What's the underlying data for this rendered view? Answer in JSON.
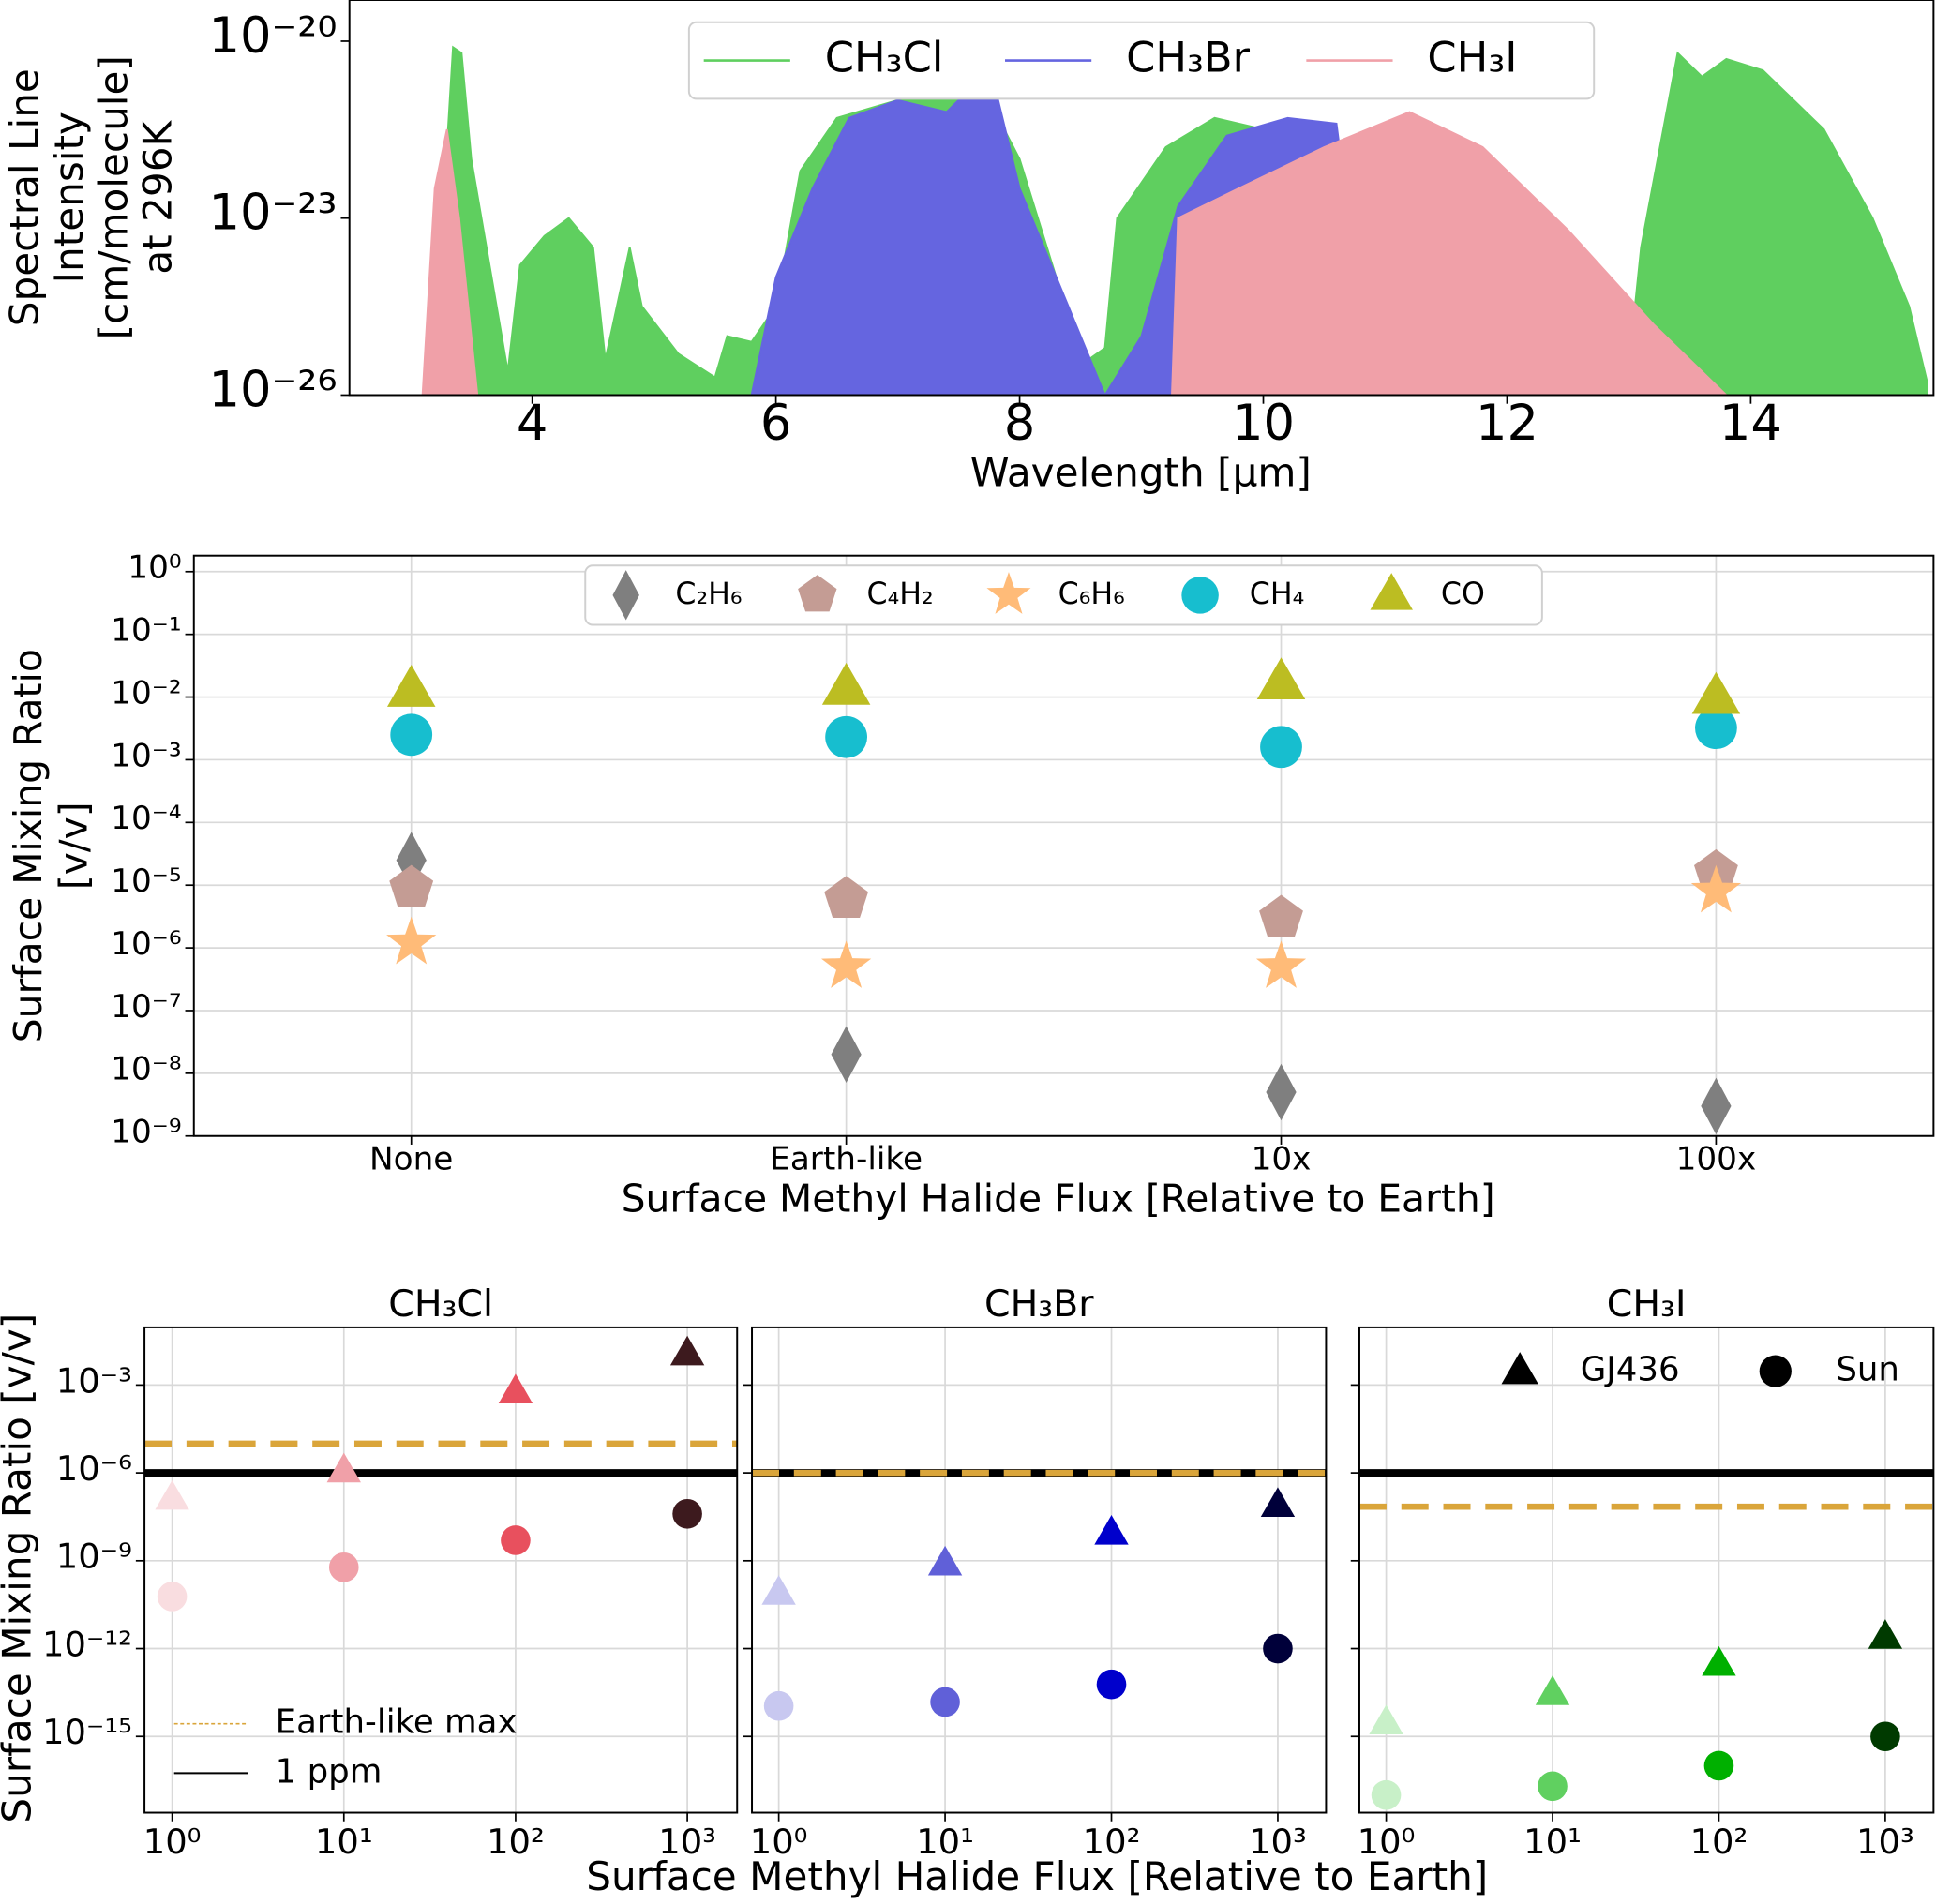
{
  "chart_data": [
    {
      "type": "area",
      "log_y": true,
      "xlabel": "Wavelength [μm]",
      "ylabel": [
        "Spectral Line",
        "Intensity",
        "[cm/molecule]",
        "at 296K"
      ],
      "xlim": [
        2.5,
        15.5
      ],
      "ylim": [
        1e-26,
        5e-20
      ],
      "xticks": [
        4,
        6,
        8,
        10,
        12,
        14
      ],
      "yticks": [
        {
          "value": 1e-26,
          "label": "10⁻²⁶"
        },
        {
          "value": 1e-23,
          "label": "10⁻²³"
        },
        {
          "value": 1e-20,
          "label": "10⁻²⁰"
        }
      ],
      "grid": false,
      "legend": "upper center",
      "series": [
        {
          "name": "CH₃Cl",
          "color": "#5fcf5f",
          "x": [
            3.25,
            3.3,
            3.35,
            3.42,
            3.5,
            3.8,
            3.9,
            4.1,
            4.3,
            4.5,
            4.6,
            4.8,
            4.9,
            5.2,
            5.5,
            5.6,
            5.8,
            6.0,
            6.2,
            6.5,
            7.0,
            7.5,
            7.8,
            8.0,
            8.3,
            8.5,
            8.7,
            8.8,
            9.2,
            9.6,
            10.0,
            10.2,
            10.4,
            10.6,
            13.0,
            13.1,
            13.4,
            13.6,
            13.8,
            14.1,
            14.6,
            15.0,
            15.3,
            15.45
          ],
          "values": [
            1e-26,
            1.6e-22,
            7.9e-21,
            6.3e-21,
            1e-22,
            2.5e-26,
            1.6e-24,
            5e-24,
            1e-23,
            3.2e-24,
            4e-26,
            3.2e-24,
            3.2e-25,
            5e-26,
            2e-26,
            1e-25,
            8e-26,
            3.2e-25,
            6.3e-23,
            5e-22,
            1e-21,
            1.6e-21,
            6.3e-22,
            1e-22,
            1e-24,
            3.2e-26,
            6.3e-26,
            1e-23,
            1.6e-22,
            5e-22,
            3.2e-22,
            1e-22,
            1e-24,
            1e-26,
            3.2e-26,
            3.2e-24,
            6.3e-21,
            2.5e-21,
            5e-21,
            3.2e-21,
            3.2e-22,
            1e-23,
            3.2e-25,
            1.6e-26
          ]
        },
        {
          "name": "CH₃Br",
          "color": "#6565e0",
          "x": [
            5.8,
            6.0,
            6.3,
            6.6,
            7.0,
            7.4,
            7.6,
            7.8,
            8.0,
            8.4,
            8.7,
            9.0,
            9.3,
            9.7,
            10.2,
            10.6,
            10.7,
            11.2,
            11.7,
            11.8
          ],
          "values": [
            1e-26,
            1e-24,
            3.2e-23,
            5e-22,
            1e-21,
            6.3e-22,
            1.6e-21,
            1.6e-21,
            3.2e-23,
            3.2e-25,
            1e-26,
            1e-25,
            1.6e-23,
            2.5e-22,
            5e-22,
            4e-22,
            1e-23,
            3.2e-25,
            3.2e-26,
            1e-26
          ]
        },
        {
          "name": "CH₃I",
          "color": "#f0a0a8",
          "x": [
            3.1,
            3.2,
            3.3,
            3.4,
            3.55,
            6.0,
            9.25,
            9.3,
            9.8,
            10.5,
            11.2,
            11.8,
            12.5,
            13.2,
            13.8
          ],
          "values": [
            1e-26,
            3.2e-23,
            3.2e-22,
            1e-23,
            1e-26,
            null,
            1e-26,
            1e-23,
            3.2e-23,
            1.6e-22,
            6.3e-22,
            1.6e-22,
            6.3e-24,
            1.6e-25,
            1e-26
          ]
        }
      ]
    },
    {
      "type": "scatter",
      "log_y": true,
      "xlabel": "Surface Methyl Halide Flux [Relative to Earth]",
      "ylabel": [
        "Surface Mixing Ratio",
        "[v/v]"
      ],
      "categories": [
        "None",
        "Earth-like",
        "10x",
        "100x"
      ],
      "ylim": [
        1e-09,
        1.8
      ],
      "yticks": [
        {
          "value": 1,
          "label": "10⁰"
        },
        {
          "value": 0.1,
          "label": "10⁻¹"
        },
        {
          "value": 0.01,
          "label": "10⁻²"
        },
        {
          "value": 0.001,
          "label": "10⁻³"
        },
        {
          "value": 0.0001,
          "label": "10⁻⁴"
        },
        {
          "value": 1e-05,
          "label": "10⁻⁵"
        },
        {
          "value": 1e-06,
          "label": "10⁻⁶"
        },
        {
          "value": 1e-07,
          "label": "10⁻⁷"
        },
        {
          "value": 1e-08,
          "label": "10⁻⁸"
        },
        {
          "value": 1e-09,
          "label": "10⁻⁹"
        }
      ],
      "grid": true,
      "legend": "upper center",
      "series": [
        {
          "name": "C₂H₆",
          "color": "#7f7f7f",
          "marker": "diamond",
          "values": [
            2.5e-05,
            2e-08,
            5e-09,
            3e-09
          ]
        },
        {
          "name": "C₄H₂",
          "color": "#c49c94",
          "marker": "pentagon",
          "values": [
            9e-06,
            6e-06,
            3e-06,
            1.6e-05
          ]
        },
        {
          "name": "C₆H₆",
          "color": "#ffbb78",
          "marker": "star",
          "values": [
            1.2e-06,
            5e-07,
            5e-07,
            8e-06
          ]
        },
        {
          "name": "CH₄",
          "color": "#17becf",
          "marker": "circle",
          "values": [
            0.0025,
            0.0023,
            0.0016,
            0.0032
          ]
        },
        {
          "name": "CO",
          "color": "#bcbd22",
          "marker": "triangle",
          "values": [
            0.013,
            0.014,
            0.017,
            0.01
          ]
        }
      ]
    },
    {
      "type": "scatter",
      "log_x": true,
      "log_y": true,
      "title": "CH₃Cl",
      "xlabel": "Surface Methyl Halide Flux [Relative to Earth]",
      "ylabel": "Surface Mixing Ratio [v/v]",
      "x": [
        1,
        10,
        100,
        1000
      ],
      "xlim": [
        0.69,
        1950
      ],
      "ylim": [
        2.5e-18,
        0.093
      ],
      "xticks": [
        {
          "value": 1,
          "label": "10⁰"
        },
        {
          "value": 10,
          "label": "10¹"
        },
        {
          "value": 100,
          "label": "10²"
        },
        {
          "value": 1000,
          "label": "10³"
        }
      ],
      "yticks": [
        {
          "value": 0.001,
          "label": "10⁻³"
        },
        {
          "value": 1e-06,
          "label": "10⁻⁶"
        },
        {
          "value": 1e-09,
          "label": "10⁻⁹"
        },
        {
          "value": 1e-12,
          "label": "10⁻¹²"
        },
        {
          "value": 1e-15,
          "label": "10⁻¹⁵"
        }
      ],
      "grid": true,
      "legend": "lower left",
      "hlines": [
        {
          "name": "Earth-like max",
          "value": 1e-05,
          "color": "#daa53a",
          "dashed": true
        },
        {
          "name": "1 ppm",
          "value": 1e-06,
          "color": "#000000"
        }
      ],
      "series": [
        {
          "marker": "triangle",
          "colors": [
            "#f9dde0",
            "#f0a0a8",
            "#e8505e",
            "#3d1a1e"
          ],
          "values": [
            1.4e-07,
            1.2e-06,
            0.0006,
            0.012
          ]
        },
        {
          "marker": "circle",
          "colors": [
            "#f9dde0",
            "#f0a0a8",
            "#e8505e",
            "#3d1a1e"
          ],
          "values": [
            6e-11,
            6e-10,
            5e-09,
            4e-08
          ]
        }
      ]
    },
    {
      "type": "scatter",
      "log_x": true,
      "log_y": true,
      "title": "CH₃Br",
      "x": [
        1,
        10,
        100,
        1000
      ],
      "xlim": [
        0.69,
        1950
      ],
      "ylim": [
        2.5e-18,
        0.093
      ],
      "xticks": [
        {
          "value": 1,
          "label": "10⁰"
        },
        {
          "value": 10,
          "label": "10¹"
        },
        {
          "value": 100,
          "label": "10²"
        },
        {
          "value": 1000,
          "label": "10³"
        }
      ],
      "yticks": [
        0.001,
        1e-06,
        1e-09,
        1e-12,
        1e-15
      ],
      "ytick_labels": false,
      "grid": true,
      "hlines": [
        {
          "value": 1e-06,
          "color": "#daa53a",
          "dashed": true
        },
        {
          "value": 1e-06,
          "color": "#000000"
        }
      ],
      "series": [
        {
          "marker": "triangle",
          "colors": [
            "#c8c8f0",
            "#6060d8",
            "#0000cc",
            "#00003a"
          ],
          "values": [
            8e-11,
            8e-10,
            9e-09,
            8e-08
          ]
        },
        {
          "marker": "circle",
          "colors": [
            "#c8c8f0",
            "#6060d8",
            "#0000cc",
            "#00003a"
          ],
          "values": [
            1.1e-14,
            1.5e-14,
            6e-14,
            1e-12
          ]
        }
      ]
    },
    {
      "type": "scatter",
      "log_x": true,
      "log_y": true,
      "title": "CH₃I",
      "x": [
        1,
        10,
        100,
        1000
      ],
      "xlim": [
        0.69,
        1950
      ],
      "ylim": [
        2.5e-18,
        0.093
      ],
      "xticks": [
        {
          "value": 1,
          "label": "10⁰"
        },
        {
          "value": 10,
          "label": "10¹"
        },
        {
          "value": 100,
          "label": "10²"
        },
        {
          "value": 1000,
          "label": "10³"
        }
      ],
      "yticks": [
        0.001,
        1e-06,
        1e-09,
        1e-12,
        1e-15
      ],
      "ytick_labels": false,
      "grid": true,
      "legend": "upper right",
      "hlines": [
        {
          "value": 7e-08,
          "color": "#daa53a",
          "dashed": true
        },
        {
          "value": 1e-06,
          "color": "#000000"
        }
      ],
      "series": [
        {
          "name": "GJ436",
          "color": "#000000",
          "marker": "triangle",
          "colors": [
            "#c8f0c8",
            "#60d060",
            "#00b000",
            "#003a00"
          ],
          "values": [
            3e-15,
            3e-14,
            3e-13,
            2.5e-12
          ]
        },
        {
          "name": "Sun",
          "color": "#000000",
          "marker": "circle",
          "colors": [
            "#c8f0c8",
            "#60d060",
            "#00b000",
            "#003a00"
          ],
          "values": [
            1e-17,
            2e-17,
            1e-16,
            1e-15
          ]
        }
      ]
    }
  ]
}
